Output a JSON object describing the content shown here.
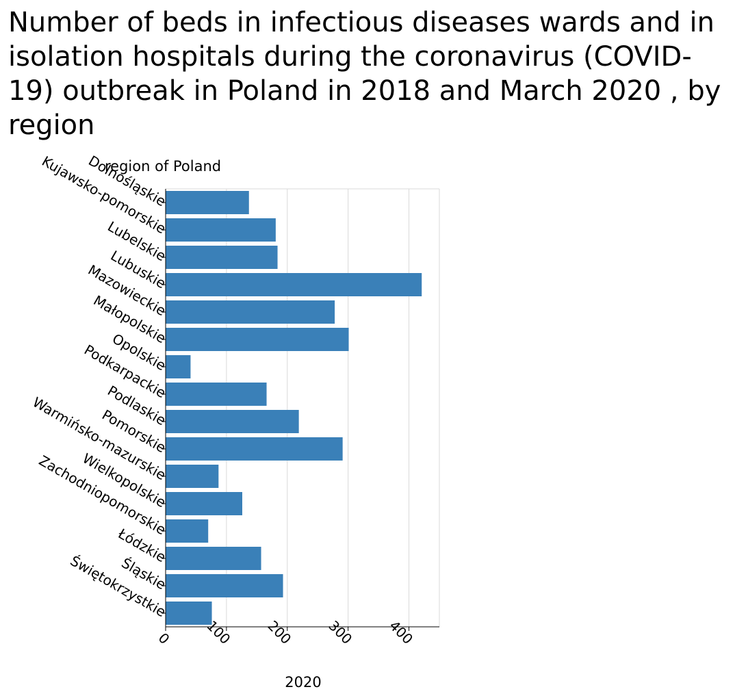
{
  "chart_data": {
    "type": "bar",
    "orientation": "horizontal",
    "title": "Number of beds in infectious diseases wards and in isolation hospitals during the coronavirus (COVID-19) outbreak in Poland in 2018 and March 2020 , by region",
    "ylabel": "region of Poland",
    "xlabel": "2020",
    "categories": [
      "Dolnośląskie",
      "Kujawsko-pomorskie",
      "Lubelskie",
      "Lubuskie",
      "Mazowieckie",
      "Małopolskie",
      "Opolskie",
      "Podkarpackie",
      "Podlaskie",
      "Pomorskie",
      "Warmińsko-mazurskie",
      "Wielkopolskie",
      "Zachodniopomorskie",
      "Łódzkie",
      "Śląskie",
      "Świętokrzystkie"
    ],
    "values": [
      137,
      181,
      184,
      421,
      278,
      301,
      41,
      166,
      219,
      291,
      87,
      126,
      70,
      157,
      193,
      76
    ],
    "xlim": [
      0,
      450
    ],
    "xticks": [
      0,
      100,
      200,
      300,
      400
    ],
    "grid": true,
    "bar_color": "#3a80b8"
  }
}
